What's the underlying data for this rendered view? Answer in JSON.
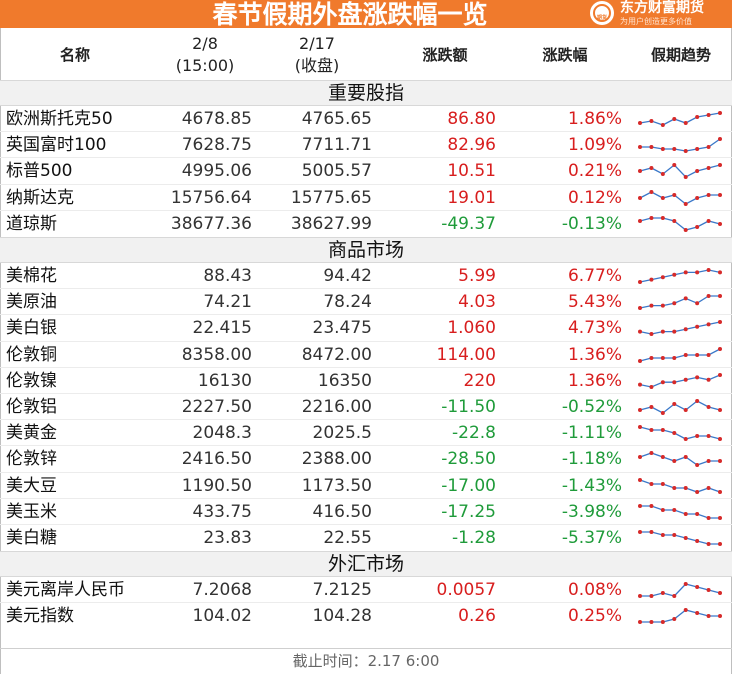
{
  "header": {
    "title": "春节假期外盘涨跌幅一览",
    "logo_name": "东方财富期货",
    "logo_mark": "期货",
    "logo_slogan": "为用户创造更多价值"
  },
  "columns": {
    "name": "名称",
    "v1_line1": "2/8",
    "v1_line2": "(15:00)",
    "v2_line1": "2/17",
    "v2_line2": "(收盘)",
    "change": "涨跌额",
    "pct": "涨跌幅",
    "trend": "假期趋势"
  },
  "colors": {
    "up": "#d81e1e",
    "down": "#1f9b3a",
    "brand": "#f07a2c"
  },
  "sections": [
    {
      "title": "重要股指",
      "rows": [
        {
          "name": "欧洲斯托克50",
          "v1": "4678.85",
          "v2": "4765.65",
          "change": "86.80",
          "pct": "1.86%",
          "dir": "up",
          "trend": [
            3,
            4,
            2,
            5,
            3,
            6,
            7,
            8
          ]
        },
        {
          "name": "英国富时100",
          "v1": "7628.75",
          "v2": "7711.71",
          "change": "82.96",
          "pct": "1.09%",
          "dir": "up",
          "trend": [
            4,
            4,
            3,
            3,
            2,
            3,
            4,
            8
          ]
        },
        {
          "name": "标普500",
          "v1": "4995.06",
          "v2": "5005.57",
          "change": "10.51",
          "pct": "0.21%",
          "dir": "up",
          "trend": [
            5,
            6,
            4,
            7,
            3,
            5,
            6,
            7
          ]
        },
        {
          "name": "纳斯达克",
          "v1": "15756.64",
          "v2": "15775.65",
          "change": "19.01",
          "pct": "0.12%",
          "dir": "up",
          "trend": [
            5,
            7,
            5,
            6,
            3,
            5,
            6,
            6
          ]
        },
        {
          "name": "道琼斯",
          "v1": "38677.36",
          "v2": "38627.99",
          "change": "-49.37",
          "pct": "-0.13%",
          "dir": "down",
          "trend": [
            6,
            7,
            7,
            6,
            3,
            4,
            6,
            5
          ]
        }
      ]
    },
    {
      "title": "商品市场",
      "rows": [
        {
          "name": "美棉花",
          "v1": "88.43",
          "v2": "94.42",
          "change": "5.99",
          "pct": "6.77%",
          "dir": "up",
          "trend": [
            2,
            3,
            4,
            5,
            6,
            6,
            7,
            6
          ]
        },
        {
          "name": "美原油",
          "v1": "74.21",
          "v2": "78.24",
          "change": "4.03",
          "pct": "5.43%",
          "dir": "up",
          "trend": [
            2,
            3,
            3,
            4,
            6,
            4,
            7,
            7
          ]
        },
        {
          "name": "美白银",
          "v1": "22.415",
          "v2": "23.475",
          "change": "1.060",
          "pct": "4.73%",
          "dir": "up",
          "trend": [
            3,
            2,
            3,
            3,
            4,
            5,
            6,
            7
          ]
        },
        {
          "name": "伦敦铜",
          "v1": "8358.00",
          "v2": "8472.00",
          "change": "114.00",
          "pct": "1.36%",
          "dir": "up",
          "trend": [
            3,
            4,
            4,
            4,
            5,
            5,
            5,
            7
          ]
        },
        {
          "name": "伦敦镍",
          "v1": "16130",
          "v2": "16350",
          "change": "220",
          "pct": "1.36%",
          "dir": "up",
          "trend": [
            3,
            2,
            4,
            4,
            5,
            6,
            5,
            7
          ]
        },
        {
          "name": "伦敦铝",
          "v1": "2227.50",
          "v2": "2216.00",
          "change": "-11.50",
          "pct": "-0.52%",
          "dir": "down",
          "trend": [
            4,
            5,
            3,
            6,
            4,
            7,
            5,
            4
          ]
        },
        {
          "name": "美黄金",
          "v1": "2048.3",
          "v2": "2025.5",
          "change": "-22.8",
          "pct": "-1.11%",
          "dir": "down",
          "trend": [
            7,
            6,
            6,
            5,
            3,
            4,
            4,
            3
          ]
        },
        {
          "name": "伦敦锌",
          "v1": "2416.50",
          "v2": "2388.00",
          "change": "-28.50",
          "pct": "-1.18%",
          "dir": "down",
          "trend": [
            6,
            7,
            6,
            5,
            6,
            4,
            5,
            5
          ]
        },
        {
          "name": "美大豆",
          "v1": "1190.50",
          "v2": "1173.50",
          "change": "-17.00",
          "pct": "-1.43%",
          "dir": "down",
          "trend": [
            7,
            6,
            6,
            5,
            5,
            4,
            5,
            4
          ]
        },
        {
          "name": "美玉米",
          "v1": "433.75",
          "v2": "416.50",
          "change": "-17.25",
          "pct": "-3.98%",
          "dir": "down",
          "trend": [
            6,
            6,
            5,
            5,
            4,
            4,
            3,
            3
          ]
        },
        {
          "name": "美白糖",
          "v1": "23.83",
          "v2": "22.55",
          "change": "-1.28",
          "pct": "-5.37%",
          "dir": "down",
          "trend": [
            7,
            7,
            6,
            6,
            5,
            4,
            3,
            3
          ]
        }
      ]
    },
    {
      "title": "外汇市场",
      "rows": [
        {
          "name": "美元离岸人民币",
          "v1": "7.2068",
          "v2": "7.2125",
          "change": "0.0057",
          "pct": "0.08%",
          "dir": "up",
          "trend": [
            3,
            3,
            4,
            3,
            7,
            6,
            5,
            4
          ]
        },
        {
          "name": "美元指数",
          "v1": "104.02",
          "v2": "104.28",
          "change": "0.26",
          "pct": "0.25%",
          "dir": "up",
          "trend": [
            3,
            3,
            3,
            4,
            7,
            6,
            5,
            5
          ]
        }
      ]
    }
  ],
  "footer": {
    "text": "截止时间：2.17 6:00"
  }
}
